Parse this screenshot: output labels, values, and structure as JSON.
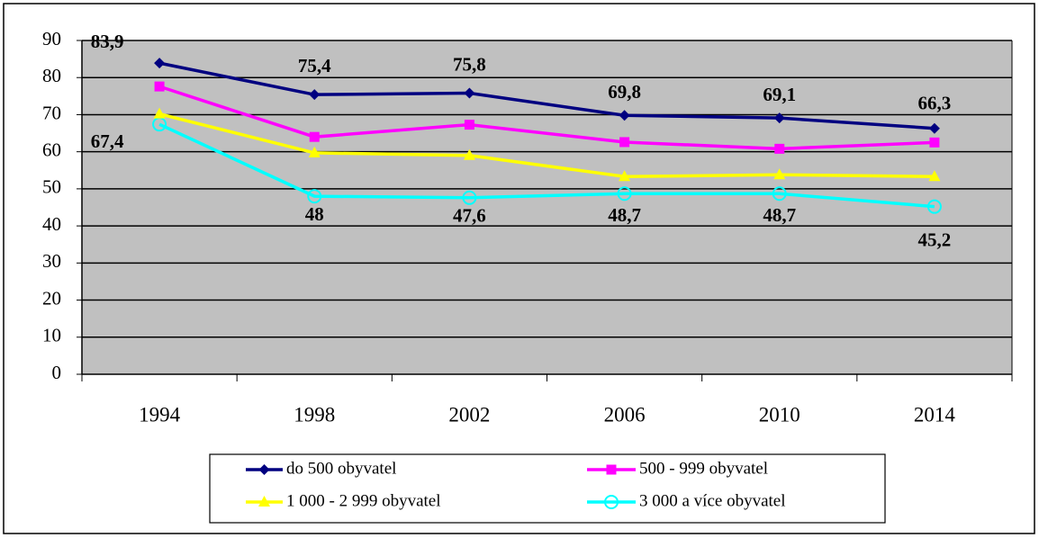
{
  "chart_data": {
    "type": "line",
    "categories": [
      "1994",
      "1998",
      "2002",
      "2006",
      "2010",
      "2014"
    ],
    "series": [
      {
        "name": "do 500 obyvatel",
        "color": "#000080",
        "marker": "diamond",
        "values": [
          83.9,
          75.4,
          75.8,
          69.8,
          69.1,
          66.3
        ],
        "value_labels": [
          "83,9",
          "75,4",
          "75,8",
          "69,8",
          "69,1",
          "66,3"
        ]
      },
      {
        "name": "500 - 999 obyvatel",
        "color": "#ff00ff",
        "marker": "square",
        "values": [
          77.6,
          64,
          67.3,
          62.6,
          60.8,
          62.5
        ]
      },
      {
        "name": "1 000 - 2 999 obyvatel",
        "color": "#ffff00",
        "marker": "triangle",
        "values": [
          70.2,
          59.7,
          59,
          53.3,
          53.8,
          53.3
        ]
      },
      {
        "name": "3 000 a více obyvatel",
        "color": "#00ffff",
        "marker": "circle",
        "values": [
          67.4,
          48,
          47.6,
          48.7,
          48.7,
          45.2
        ],
        "value_labels": [
          "67,4",
          "48",
          "47,6",
          "48,7",
          "48,7",
          "45,2"
        ]
      }
    ],
    "ylim": [
      0,
      90
    ],
    "yticks": [
      0,
      10,
      20,
      30,
      40,
      50,
      60,
      70,
      80,
      90
    ],
    "grid": true,
    "plot_background": "#c0c0c0",
    "legend": "bottom"
  }
}
